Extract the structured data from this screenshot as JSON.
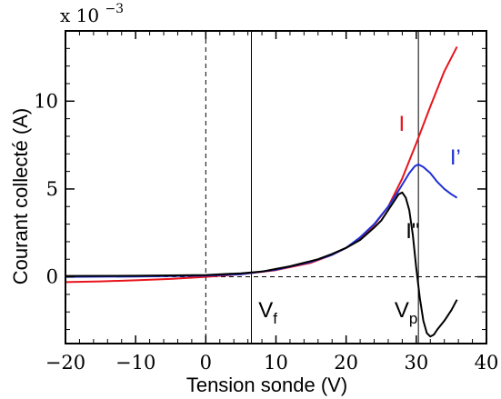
{
  "chart_data": {
    "type": "line",
    "xlabel": "Tension sonde (V)",
    "ylabel": "Courant collecté (A)",
    "y_scale_label": "x 10",
    "y_scale_exponent": "−3",
    "xlim": [
      -20,
      40
    ],
    "ylim": [
      -3.8,
      14
    ],
    "x_ticks": [
      -20,
      -10,
      0,
      10,
      20,
      30,
      40
    ],
    "x_tick_labels": [
      "−20",
      "−10",
      "0",
      "10",
      "20",
      "30",
      "40"
    ],
    "y_ticks": [
      0,
      5,
      10
    ],
    "y_tick_labels": [
      "0",
      "5",
      "10"
    ],
    "grid": false,
    "reference_lines": {
      "y_zero_dashed": 0,
      "x_zero_dashed": 0,
      "v_f": 6.5,
      "v_p": 30.3
    },
    "annotations": [
      {
        "text": "I",
        "color": "#e8141b",
        "x": 27.5,
        "y": 8.3
      },
      {
        "text": "I’",
        "color": "#1f2fd6",
        "x": 34.8,
        "y": 6.4
      },
      {
        "text": "I\"",
        "color": "#000000",
        "x": 28.5,
        "y": 2.2
      },
      {
        "text": "V",
        "sub": "f",
        "color": "#000000",
        "x": 7.5,
        "y": -2.3
      },
      {
        "text": "V",
        "sub": "p",
        "color": "#000000",
        "x": 26.9,
        "y": -2.3
      }
    ],
    "series": [
      {
        "key": "I",
        "color": "#e8141b",
        "x": [
          -20,
          -15,
          -10,
          -5,
          0,
          5,
          10,
          15,
          18,
          20,
          22,
          24,
          26,
          28,
          30,
          32,
          34,
          35.8
        ],
        "y": [
          -0.3,
          -0.26,
          -0.2,
          -0.12,
          0.0,
          0.15,
          0.38,
          0.8,
          1.25,
          1.65,
          2.2,
          2.95,
          4.0,
          5.6,
          7.6,
          9.7,
          11.7,
          13.1
        ]
      },
      {
        "key": "I'",
        "color": "#1f2fd6",
        "x": [
          -20,
          -10,
          0,
          5,
          10,
          15,
          18,
          20,
          22,
          24,
          26,
          27,
          28,
          29,
          29.8,
          30.3,
          31,
          32,
          33,
          34,
          35,
          35.8
        ],
        "y": [
          0.0,
          0.02,
          0.07,
          0.15,
          0.4,
          0.85,
          1.25,
          1.65,
          2.25,
          3.0,
          4.0,
          4.6,
          5.25,
          5.9,
          6.3,
          6.4,
          6.25,
          5.9,
          5.4,
          5.0,
          4.7,
          4.5
        ]
      },
      {
        "key": "I\"",
        "color": "#000000",
        "x": [
          -20,
          -10,
          0,
          5,
          8,
          10,
          12,
          14,
          15,
          16,
          18,
          20,
          22,
          24,
          25,
          26,
          27,
          27.5,
          28,
          28.5,
          29,
          29.5,
          30,
          30.5,
          31,
          31.5,
          32,
          32.5,
          33,
          34,
          35,
          35.8
        ],
        "y": [
          0.05,
          0.06,
          0.1,
          0.2,
          0.3,
          0.45,
          0.6,
          0.8,
          0.9,
          1.0,
          1.3,
          1.65,
          2.1,
          2.8,
          3.2,
          3.8,
          4.4,
          4.7,
          4.8,
          4.5,
          3.8,
          2.4,
          0.5,
          -1.2,
          -2.5,
          -3.2,
          -3.4,
          -3.3,
          -3.0,
          -2.5,
          -1.9,
          -1.3
        ]
      }
    ]
  }
}
